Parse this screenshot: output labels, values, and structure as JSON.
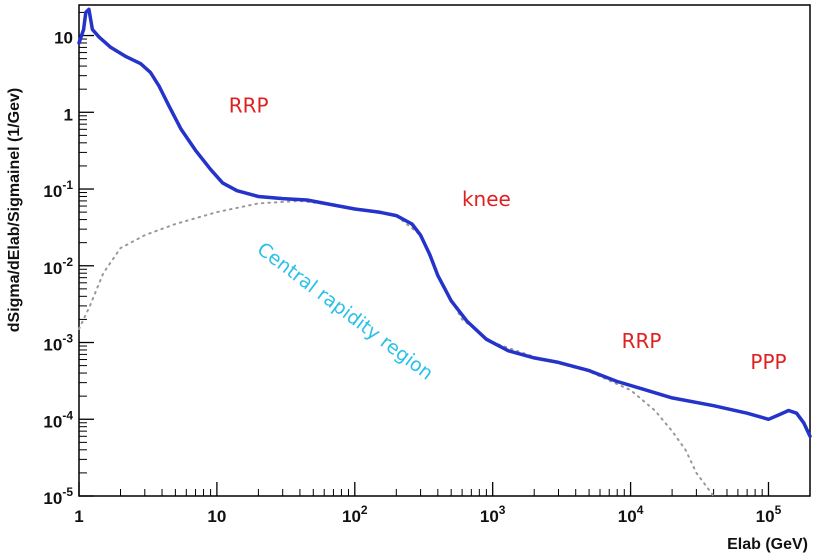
{
  "chart_data": {
    "type": "line",
    "xlabel": "Elab (GeV)",
    "ylabel": "dSigma/dElab/Sigmainel (1/Gev)",
    "x_scale": "log",
    "y_scale": "log",
    "xlim": [
      1,
      200000
    ],
    "ylim": [
      1e-05,
      25
    ],
    "x_ticks": [
      {
        "value": 1,
        "base": "1",
        "exp": ""
      },
      {
        "value": 10,
        "base": "10",
        "exp": ""
      },
      {
        "value": 100,
        "base": "10",
        "exp": "2"
      },
      {
        "value": 1000,
        "base": "10",
        "exp": "3"
      },
      {
        "value": 10000,
        "base": "10",
        "exp": "4"
      },
      {
        "value": 100000,
        "base": "10",
        "exp": "5"
      }
    ],
    "y_ticks": [
      {
        "value": 1e-05,
        "base": "10",
        "exp": "-5"
      },
      {
        "value": 0.0001,
        "base": "10",
        "exp": "-4"
      },
      {
        "value": 0.001,
        "base": "10",
        "exp": "-3"
      },
      {
        "value": 0.01,
        "base": "10",
        "exp": "-2"
      },
      {
        "value": 0.1,
        "base": "10",
        "exp": "-1"
      },
      {
        "value": 1,
        "base": "1",
        "exp": ""
      },
      {
        "value": 10,
        "base": "10",
        "exp": ""
      }
    ],
    "grid": false,
    "series": [
      {
        "style": "solid",
        "color": "#2433c9",
        "points": [
          [
            1,
            8
          ],
          [
            1.08,
            12
          ],
          [
            1.12,
            20
          ],
          [
            1.18,
            22
          ],
          [
            1.25,
            12
          ],
          [
            1.4,
            9.5
          ],
          [
            1.7,
            7
          ],
          [
            2.2,
            5.3
          ],
          [
            2.8,
            4.3
          ],
          [
            3.3,
            3.3
          ],
          [
            3.8,
            2.2
          ],
          [
            4.5,
            1.2
          ],
          [
            5.5,
            0.6
          ],
          [
            7,
            0.32
          ],
          [
            9,
            0.18
          ],
          [
            11,
            0.12
          ],
          [
            14,
            0.095
          ],
          [
            20,
            0.08
          ],
          [
            30,
            0.075
          ],
          [
            45,
            0.072
          ],
          [
            70,
            0.062
          ],
          [
            100,
            0.055
          ],
          [
            150,
            0.05
          ],
          [
            200,
            0.045
          ],
          [
            260,
            0.035
          ],
          [
            300,
            0.025
          ],
          [
            350,
            0.014
          ],
          [
            400,
            0.0075
          ],
          [
            500,
            0.0035
          ],
          [
            650,
            0.0019
          ],
          [
            900,
            0.0011
          ],
          [
            1300,
            0.00078
          ],
          [
            2000,
            0.00063
          ],
          [
            3000,
            0.00055
          ],
          [
            5000,
            0.00043
          ],
          [
            8000,
            0.00031
          ],
          [
            12000,
            0.00025
          ],
          [
            20000,
            0.00019
          ],
          [
            40000,
            0.00015
          ],
          [
            70000,
            0.00012
          ],
          [
            100000,
            0.0001
          ],
          [
            120000,
            0.000115
          ],
          [
            140000,
            0.00013
          ],
          [
            160000,
            0.00012
          ],
          [
            180000,
            9e-05
          ],
          [
            200000,
            6e-05
          ]
        ]
      },
      {
        "style": "dotted",
        "color": "#999999",
        "points": [
          [
            1,
            0.0015
          ],
          [
            1.2,
            0.003
          ],
          [
            1.5,
            0.008
          ],
          [
            2,
            0.017
          ],
          [
            3,
            0.025
          ],
          [
            5,
            0.035
          ],
          [
            10,
            0.05
          ],
          [
            20,
            0.065
          ],
          [
            40,
            0.07
          ],
          [
            70,
            0.062
          ],
          [
            100,
            0.055
          ],
          [
            200,
            0.045
          ],
          [
            300,
            0.025
          ],
          [
            400,
            0.0075
          ],
          [
            600,
            0.002
          ],
          [
            1000,
            0.001
          ],
          [
            2000,
            0.00065
          ],
          [
            5000,
            0.00042
          ],
          [
            10000,
            0.00024
          ],
          [
            15000,
            0.00013
          ],
          [
            20000,
            7e-05
          ],
          [
            25000,
            4e-05
          ],
          [
            30000,
            2e-05
          ],
          [
            40000,
            1e-05
          ]
        ]
      }
    ],
    "annotations": [
      {
        "text": "RRP",
        "x": 17,
        "y": 1.0,
        "color": "#e02020",
        "rotation": 0,
        "cls": "annot-red"
      },
      {
        "text": "knee",
        "x": 900,
        "y": 0.06,
        "color": "#e02020",
        "rotation": 0,
        "cls": "annot-red"
      },
      {
        "text": "RRP",
        "x": 12000,
        "y": 0.00085,
        "color": "#e02020",
        "rotation": 0,
        "cls": "annot-red"
      },
      {
        "text": "PPP",
        "x": 100000,
        "y": 0.00045,
        "color": "#e02020",
        "rotation": 0,
        "cls": "annot-red"
      },
      {
        "text": "Central rapidity region",
        "x": 80,
        "y": 0.0022,
        "color": "#2bc0e8",
        "rotation": 37,
        "cls": "annot-cyan"
      }
    ]
  }
}
